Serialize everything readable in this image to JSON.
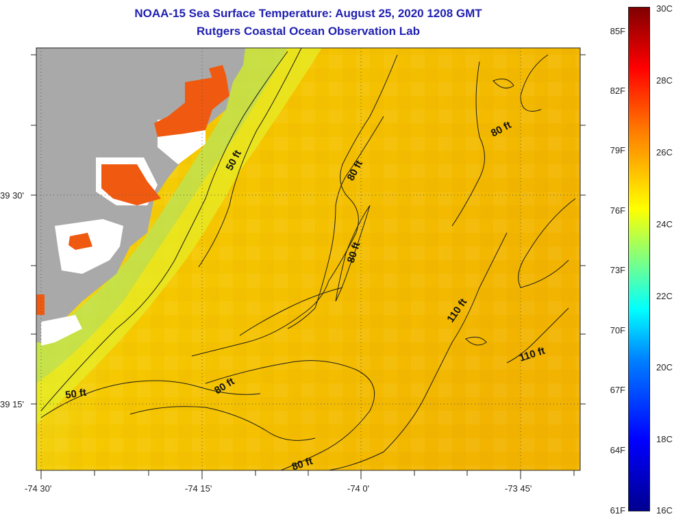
{
  "header": {
    "title": "NOAA-15 Sea Surface Temperature:  August 25, 2020 1208 GMT",
    "subtitle": "Rutgers Coastal Ocean Observation Lab"
  },
  "map": {
    "lon_labels": [
      "-74 30'",
      "-74 15'",
      "-74 0'",
      "-73 45'"
    ],
    "lat_labels": [
      "39 30'",
      "39 15'"
    ],
    "contour_labels": [
      "50 ft",
      "80 ft",
      "80 ft",
      "80 ft",
      "50 ft",
      "80 ft",
      "80 ft",
      "110 ft",
      "110 ft"
    ],
    "colors": {
      "land": "#a9a9a9",
      "sea_warm": "#f2b800",
      "sea_cool": "#e6f020",
      "near_shore": "#a8e050",
      "hot_land": "#f05a10"
    }
  },
  "colorbar": {
    "fahrenheit": [
      "85F",
      "82F",
      "79F",
      "76F",
      "73F",
      "70F",
      "67F",
      "64F",
      "61F"
    ],
    "celsius": [
      "30C",
      "28C",
      "26C",
      "24C",
      "22C",
      "20C",
      "18C",
      "16C"
    ]
  }
}
